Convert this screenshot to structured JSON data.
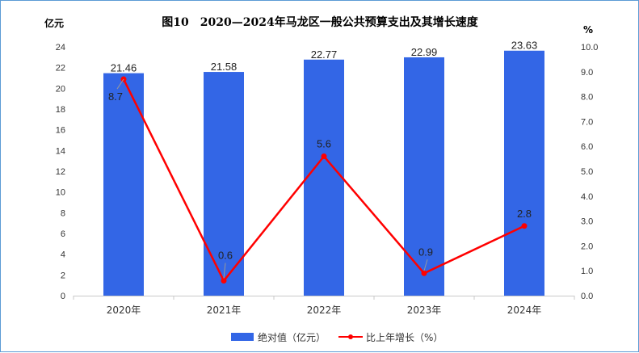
{
  "colors": {
    "bar": "#3366e6",
    "line": "#ff0000",
    "frame": "#5b9bd5"
  },
  "chart_data": {
    "type": "bar+line",
    "title": "图10　2020—2024年马龙区一般公共预算支出及其增长速度",
    "categories": [
      "2020年",
      "2021年",
      "2022年",
      "2023年",
      "2024年"
    ],
    "series": [
      {
        "name": "绝对值（亿元）",
        "type": "bar",
        "axis": "left",
        "values": [
          21.46,
          21.58,
          22.77,
          22.99,
          23.63
        ],
        "labels": [
          "21.46",
          "21.58",
          "22.77",
          "22.99",
          "23.63"
        ]
      },
      {
        "name": "比上年增长（%）",
        "type": "line",
        "axis": "right",
        "values": [
          8.7,
          0.6,
          5.6,
          0.9,
          2.8
        ],
        "labels": [
          "8.7",
          "0.6",
          "5.6",
          "0.9",
          "2.8"
        ]
      }
    ],
    "y_left": {
      "unit": "亿元",
      "ylim": [
        0,
        24
      ],
      "ticks": [
        "0",
        "2",
        "4",
        "6",
        "8",
        "10",
        "12",
        "14",
        "16",
        "18",
        "20",
        "22",
        "24"
      ]
    },
    "y_right": {
      "unit": "%",
      "ylim": [
        0,
        10
      ],
      "ticks": [
        "0.0",
        "1.0",
        "2.0",
        "3.0",
        "4.0",
        "5.0",
        "6.0",
        "7.0",
        "8.0",
        "9.0",
        "10.0"
      ]
    },
    "legend_position": "bottom",
    "grid": false
  }
}
